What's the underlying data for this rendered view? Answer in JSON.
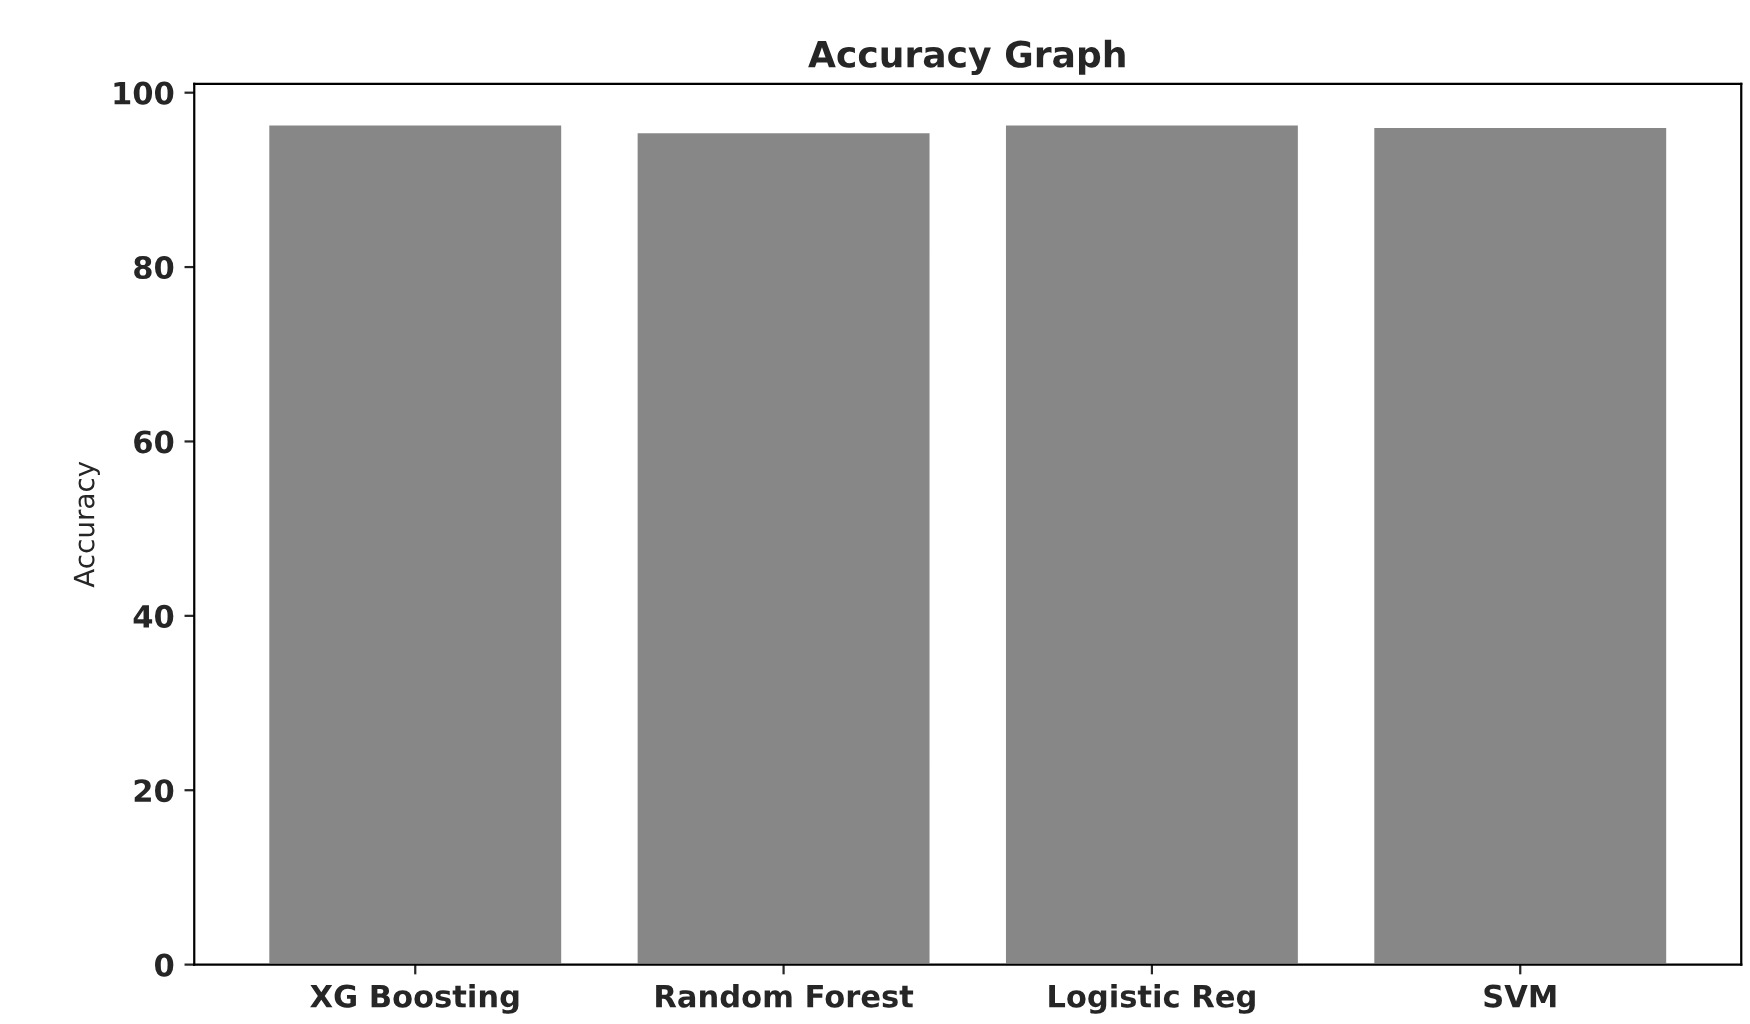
{
  "chart_data": {
    "type": "bar",
    "title": "Accuracy Graph",
    "ylabel": "Accuracy",
    "categories": [
      "XG Boosting",
      "Random Forest",
      "Logistic Reg",
      "SVM"
    ],
    "values": [
      96.4,
      95.5,
      96.4,
      96.1
    ],
    "color": "#878787",
    "ylim": [
      0,
      101
    ],
    "yticks": [
      0,
      20,
      40,
      60,
      80,
      100
    ],
    "grid": false,
    "legend": false
  }
}
